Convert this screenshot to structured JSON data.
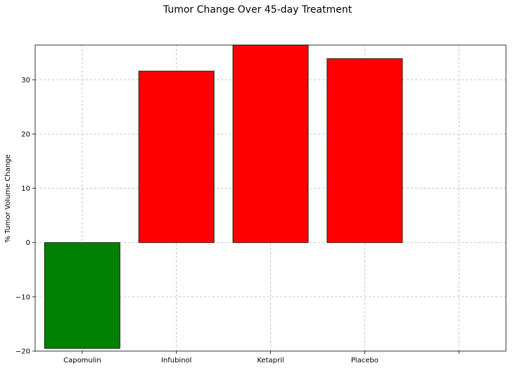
{
  "chart_data": {
    "type": "bar",
    "title": "Tumor Change Over 45-day Treatment",
    "xlabel": "",
    "ylabel": "% Tumor Volume Change",
    "categories": [
      "Capomulin",
      "Infubinol",
      "Ketapril",
      "Placebo"
    ],
    "values": [
      -19.5,
      31.6,
      36.4,
      33.9
    ],
    "bar_colors": [
      "#008000",
      "#ff0000",
      "#ff0000",
      "#ff0000"
    ],
    "edge_color": "#000000",
    "ylim": [
      -20,
      36.4
    ],
    "xlim": [
      -0.5,
      4.5
    ],
    "y_ticks": [
      -20,
      -10,
      0,
      10,
      20,
      30
    ],
    "x_ticks": [
      0,
      1,
      2,
      3,
      4
    ],
    "grid": true,
    "legend": "none"
  }
}
